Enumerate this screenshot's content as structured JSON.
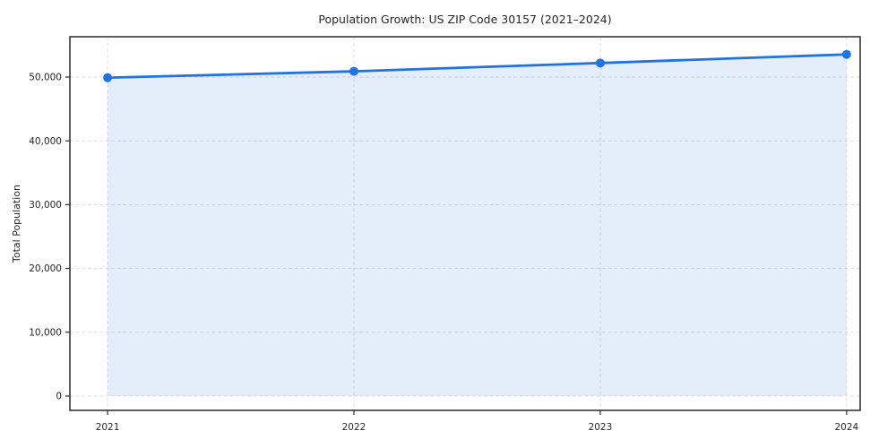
{
  "title": "Population Growth: US ZIP Code 30157 (2021–2024)",
  "chart_data": {
    "type": "line",
    "title": "Population Growth: US ZIP Code 30157 (2021–2024)",
    "xlabel": "",
    "ylabel": "Total Population",
    "x": [
      2021,
      2022,
      2023,
      2024
    ],
    "x_tick_labels": [
      "2021",
      "2022",
      "2023",
      "2024"
    ],
    "series": [
      {
        "name": "Total Population",
        "values": [
          49900,
          50900,
          52200,
          53550
        ]
      }
    ],
    "y_ticks": [
      0,
      10000,
      20000,
      30000,
      40000,
      50000
    ],
    "y_tick_labels": [
      "0",
      "10,000",
      "20,000",
      "30,000",
      "40,000",
      "50,000"
    ],
    "xlim": [
      2020.847,
      2024.055
    ],
    "ylim": [
      -2250,
      56320
    ],
    "grid": true,
    "grid_style": "dashed",
    "legend": "none",
    "area_fill": true,
    "area_baseline": 0,
    "marker": "circle",
    "colors": {
      "line": "#2272e0",
      "marker": "#2272e0",
      "fill": "rgba(34,114,224,0.12)",
      "grid": "#dcdcdc",
      "spine": "#2a2a2a",
      "text": "#262626",
      "plot_background": "#ffffff",
      "figure_background": "#ffffff"
    }
  }
}
